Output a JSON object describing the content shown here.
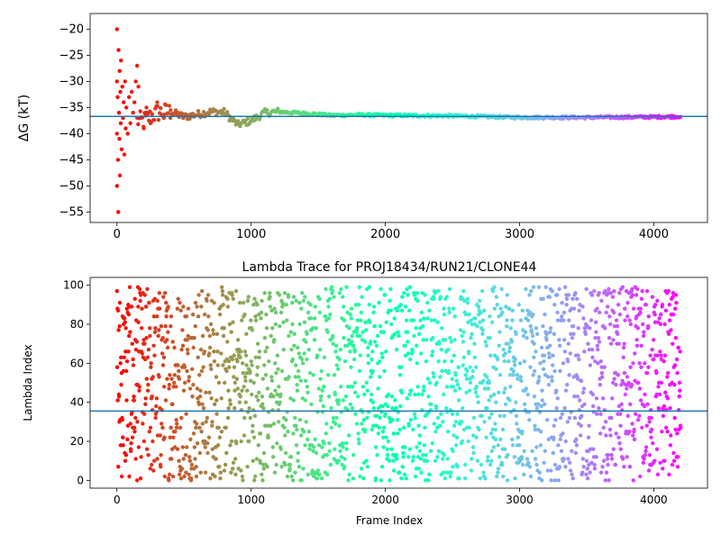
{
  "chart_data": [
    {
      "type": "scatter",
      "title": "",
      "xlabel": "",
      "ylabel": "ΔG (kT)",
      "xlim": [
        -200,
        4400
      ],
      "ylim": [
        -57,
        -17
      ],
      "xticks": [
        0,
        1000,
        2000,
        3000,
        4000
      ],
      "yticks": [
        -55,
        -50,
        -45,
        -40,
        -35,
        -30,
        -25,
        -20
      ],
      "xtick_labels": [
        "0",
        "1000",
        "2000",
        "3000",
        "4000"
      ],
      "ytick_labels": [
        "−55",
        "−50",
        "−45",
        "−40",
        "−35",
        "−30",
        "−25",
        "−20"
      ],
      "hline": -36.7,
      "hline_color": "#1f77b4",
      "colormap": "rainbow (red at frame 0 → violet at frame 4200)",
      "point_color_by": "frame index",
      "n_frames": 4200,
      "converged_value": -36.7,
      "early_points": [
        [
          0,
          -20
        ],
        [
          0,
          -30
        ],
        [
          0,
          -40
        ],
        [
          0,
          -50
        ],
        [
          5,
          -33
        ],
        [
          8,
          -45
        ],
        [
          10,
          -55
        ],
        [
          12,
          -24
        ],
        [
          15,
          -36
        ],
        [
          18,
          -41
        ],
        [
          20,
          -28
        ],
        [
          22,
          -48
        ],
        [
          25,
          -32
        ],
        [
          28,
          -38
        ],
        [
          30,
          -26
        ],
        [
          35,
          -43
        ],
        [
          40,
          -31
        ],
        [
          45,
          -37
        ],
        [
          50,
          -34
        ],
        [
          55,
          -44
        ],
        [
          60,
          -30
        ],
        [
          65,
          -39
        ],
        [
          70,
          -35
        ],
        [
          80,
          -40
        ],
        [
          90,
          -33
        ],
        [
          100,
          -38
        ],
        [
          110,
          -32
        ],
        [
          120,
          -36
        ],
        [
          130,
          -34
        ],
        [
          140,
          -30
        ],
        [
          150,
          -27
        ],
        [
          160,
          -31
        ],
        [
          180,
          -37
        ],
        [
          200,
          -39
        ],
        [
          220,
          -35
        ],
        [
          250,
          -38
        ],
        [
          300,
          -34
        ],
        [
          350,
          -37
        ],
        [
          400,
          -35.5
        ]
      ],
      "trend": [
        [
          200,
          -37.5
        ],
        [
          300,
          -36.0
        ],
        [
          400,
          -35.8
        ],
        [
          500,
          -36.8
        ],
        [
          600,
          -36.3
        ],
        [
          700,
          -35.8
        ],
        [
          800,
          -35.9
        ],
        [
          900,
          -38.3
        ],
        [
          1000,
          -37.5
        ],
        [
          1100,
          -36.0
        ],
        [
          1200,
          -35.8
        ],
        [
          1400,
          -36.1
        ],
        [
          1600,
          -36.5
        ],
        [
          1800,
          -36.4
        ],
        [
          2000,
          -36.5
        ],
        [
          2500,
          -36.6
        ],
        [
          3000,
          -36.9
        ],
        [
          3500,
          -36.9
        ],
        [
          4000,
          -36.8
        ],
        [
          4200,
          -36.7
        ]
      ]
    },
    {
      "type": "scatter",
      "title": "Lambda Trace for PROJ18434/RUN21/CLONE44",
      "xlabel": "Frame Index",
      "ylabel": "Lambda Index",
      "xlim": [
        -200,
        4400
      ],
      "ylim": [
        -4,
        104
      ],
      "xticks": [
        0,
        1000,
        2000,
        3000,
        4000
      ],
      "yticks": [
        0,
        20,
        40,
        60,
        80,
        100
      ],
      "xtick_labels": [
        "0",
        "1000",
        "2000",
        "3000",
        "4000"
      ],
      "ytick_labels": [
        "0",
        "20",
        "40",
        "60",
        "80",
        "100"
      ],
      "hline": 35.5,
      "hline_color": "#1f77b4",
      "colormap": "rainbow (red at frame 0 → violet at frame 4200)",
      "point_color_by": "frame index",
      "n_frames": 4200,
      "lambda_range": [
        0,
        99
      ]
    }
  ]
}
